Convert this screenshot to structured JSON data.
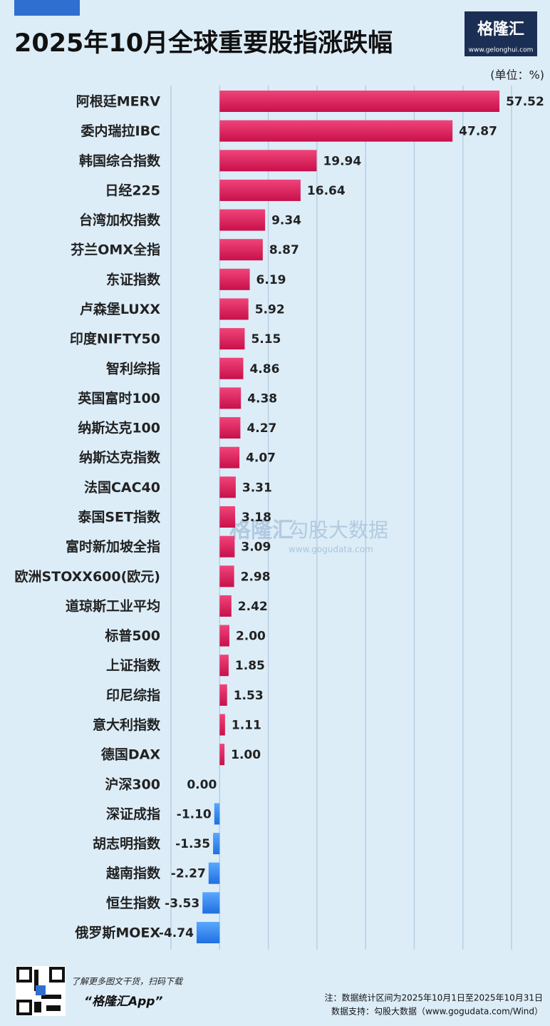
{
  "header": {
    "title": "2025年10月全球重要股指涨跌幅",
    "logo": "格隆汇",
    "logo_url": "www.gelonghui.com",
    "unit": "(单位：%)"
  },
  "watermark": {
    "brand": "格隆汇",
    "name": "勾股大数据",
    "url": "www.gogudata.com"
  },
  "chart_data": {
    "type": "hbar",
    "categories": [
      "阿根廷MERV",
      "委内瑞拉IBC",
      "韩国综合指数",
      "日经225",
      "台湾加权指数",
      "芬兰OMX全指",
      "东证指数",
      "卢森堡LUXX",
      "印度NIFTY50",
      "智利综指",
      "英国富时100",
      "纳斯达克100",
      "纳斯达克指数",
      "法国CAC40",
      "泰国SET指数",
      "富时新加坡全指",
      "欧洲STOXX600(欧元)",
      "道琼斯工业平均",
      "标普500",
      "上证指数",
      "印尼综指",
      "意大利指数",
      "德国DAX",
      "沪深300",
      "深证成指",
      "胡志明指数",
      "越南指数",
      "恒生指数",
      "俄罗斯MOEX"
    ],
    "values": [
      57.52,
      47.87,
      19.94,
      16.64,
      9.34,
      8.87,
      6.19,
      5.92,
      5.15,
      4.86,
      4.38,
      4.27,
      4.07,
      3.31,
      3.18,
      3.09,
      2.98,
      2.42,
      2.0,
      1.85,
      1.53,
      1.11,
      1.0,
      0.0,
      -1.1,
      -1.35,
      -2.27,
      -3.53,
      -4.74
    ],
    "value_labels": [
      "57.52",
      "47.87",
      "19.94",
      "16.64",
      "9.34",
      "8.87",
      "6.19",
      "5.92",
      "5.15",
      "4.86",
      "4.38",
      "4.27",
      "4.07",
      "3.31",
      "3.18",
      "3.09",
      "2.98",
      "2.42",
      "2.00",
      "1.85",
      "1.53",
      "1.11",
      "1.00",
      "0.00",
      "-1.10",
      "-1.35",
      "-2.27",
      "-3.53",
      "-4.74"
    ],
    "positive_color": "#e0245e",
    "negative_color": "#2f86f0",
    "xlim": [
      -10,
      60
    ],
    "xticks": [
      -10,
      0,
      10,
      20,
      30,
      40,
      50,
      60
    ],
    "grid": true
  },
  "footer": {
    "promo": "了解更多图文干货，扫码下载",
    "app": "“格隆汇App”",
    "note": "注：数据统计区间为2025年10月1日至2025年10月31日",
    "source": "数据支持：勾股大数据（www.gogudata.com/Wind）"
  }
}
